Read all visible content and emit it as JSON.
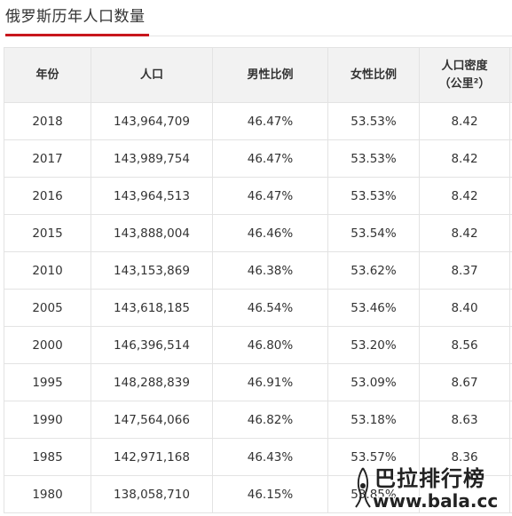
{
  "page": {
    "title": "俄罗斯历年人口数量"
  },
  "table": {
    "headers": {
      "year": "年份",
      "population": "人口",
      "male_ratio": "男性比例",
      "female_ratio": "女性比例",
      "density_line1": "人口密度",
      "density_line2": "（公里²）"
    },
    "rows": [
      {
        "year": "2018",
        "population": "143,964,709",
        "male_ratio": "46.47%",
        "female_ratio": "53.53%",
        "density": "8.42"
      },
      {
        "year": "2017",
        "population": "143,989,754",
        "male_ratio": "46.47%",
        "female_ratio": "53.53%",
        "density": "8.42"
      },
      {
        "year": "2016",
        "population": "143,964,513",
        "male_ratio": "46.47%",
        "female_ratio": "53.53%",
        "density": "8.42"
      },
      {
        "year": "2015",
        "population": "143,888,004",
        "male_ratio": "46.46%",
        "female_ratio": "53.54%",
        "density": "8.42"
      },
      {
        "year": "2010",
        "population": "143,153,869",
        "male_ratio": "46.38%",
        "female_ratio": "53.62%",
        "density": "8.37"
      },
      {
        "year": "2005",
        "population": "143,618,185",
        "male_ratio": "46.54%",
        "female_ratio": "53.46%",
        "density": "8.40"
      },
      {
        "year": "2000",
        "population": "146,396,514",
        "male_ratio": "46.80%",
        "female_ratio": "53.20%",
        "density": "8.56"
      },
      {
        "year": "1995",
        "population": "148,288,839",
        "male_ratio": "46.91%",
        "female_ratio": "53.09%",
        "density": "8.67"
      },
      {
        "year": "1990",
        "population": "147,564,066",
        "male_ratio": "46.82%",
        "female_ratio": "53.18%",
        "density": "8.63"
      },
      {
        "year": "1985",
        "population": "142,971,168",
        "male_ratio": "46.43%",
        "female_ratio": "53.57%",
        "density": "8.36"
      },
      {
        "year": "1980",
        "population": "138,058,710",
        "male_ratio": "46.15%",
        "female_ratio": "53.85%",
        "density": ""
      }
    ]
  },
  "watermark": {
    "name": "巴拉排行榜",
    "url": "www.bala.cc"
  },
  "colors": {
    "accent": "#c8161d",
    "header_bg": "#f2f2f2",
    "border": "#e3e3e3"
  }
}
